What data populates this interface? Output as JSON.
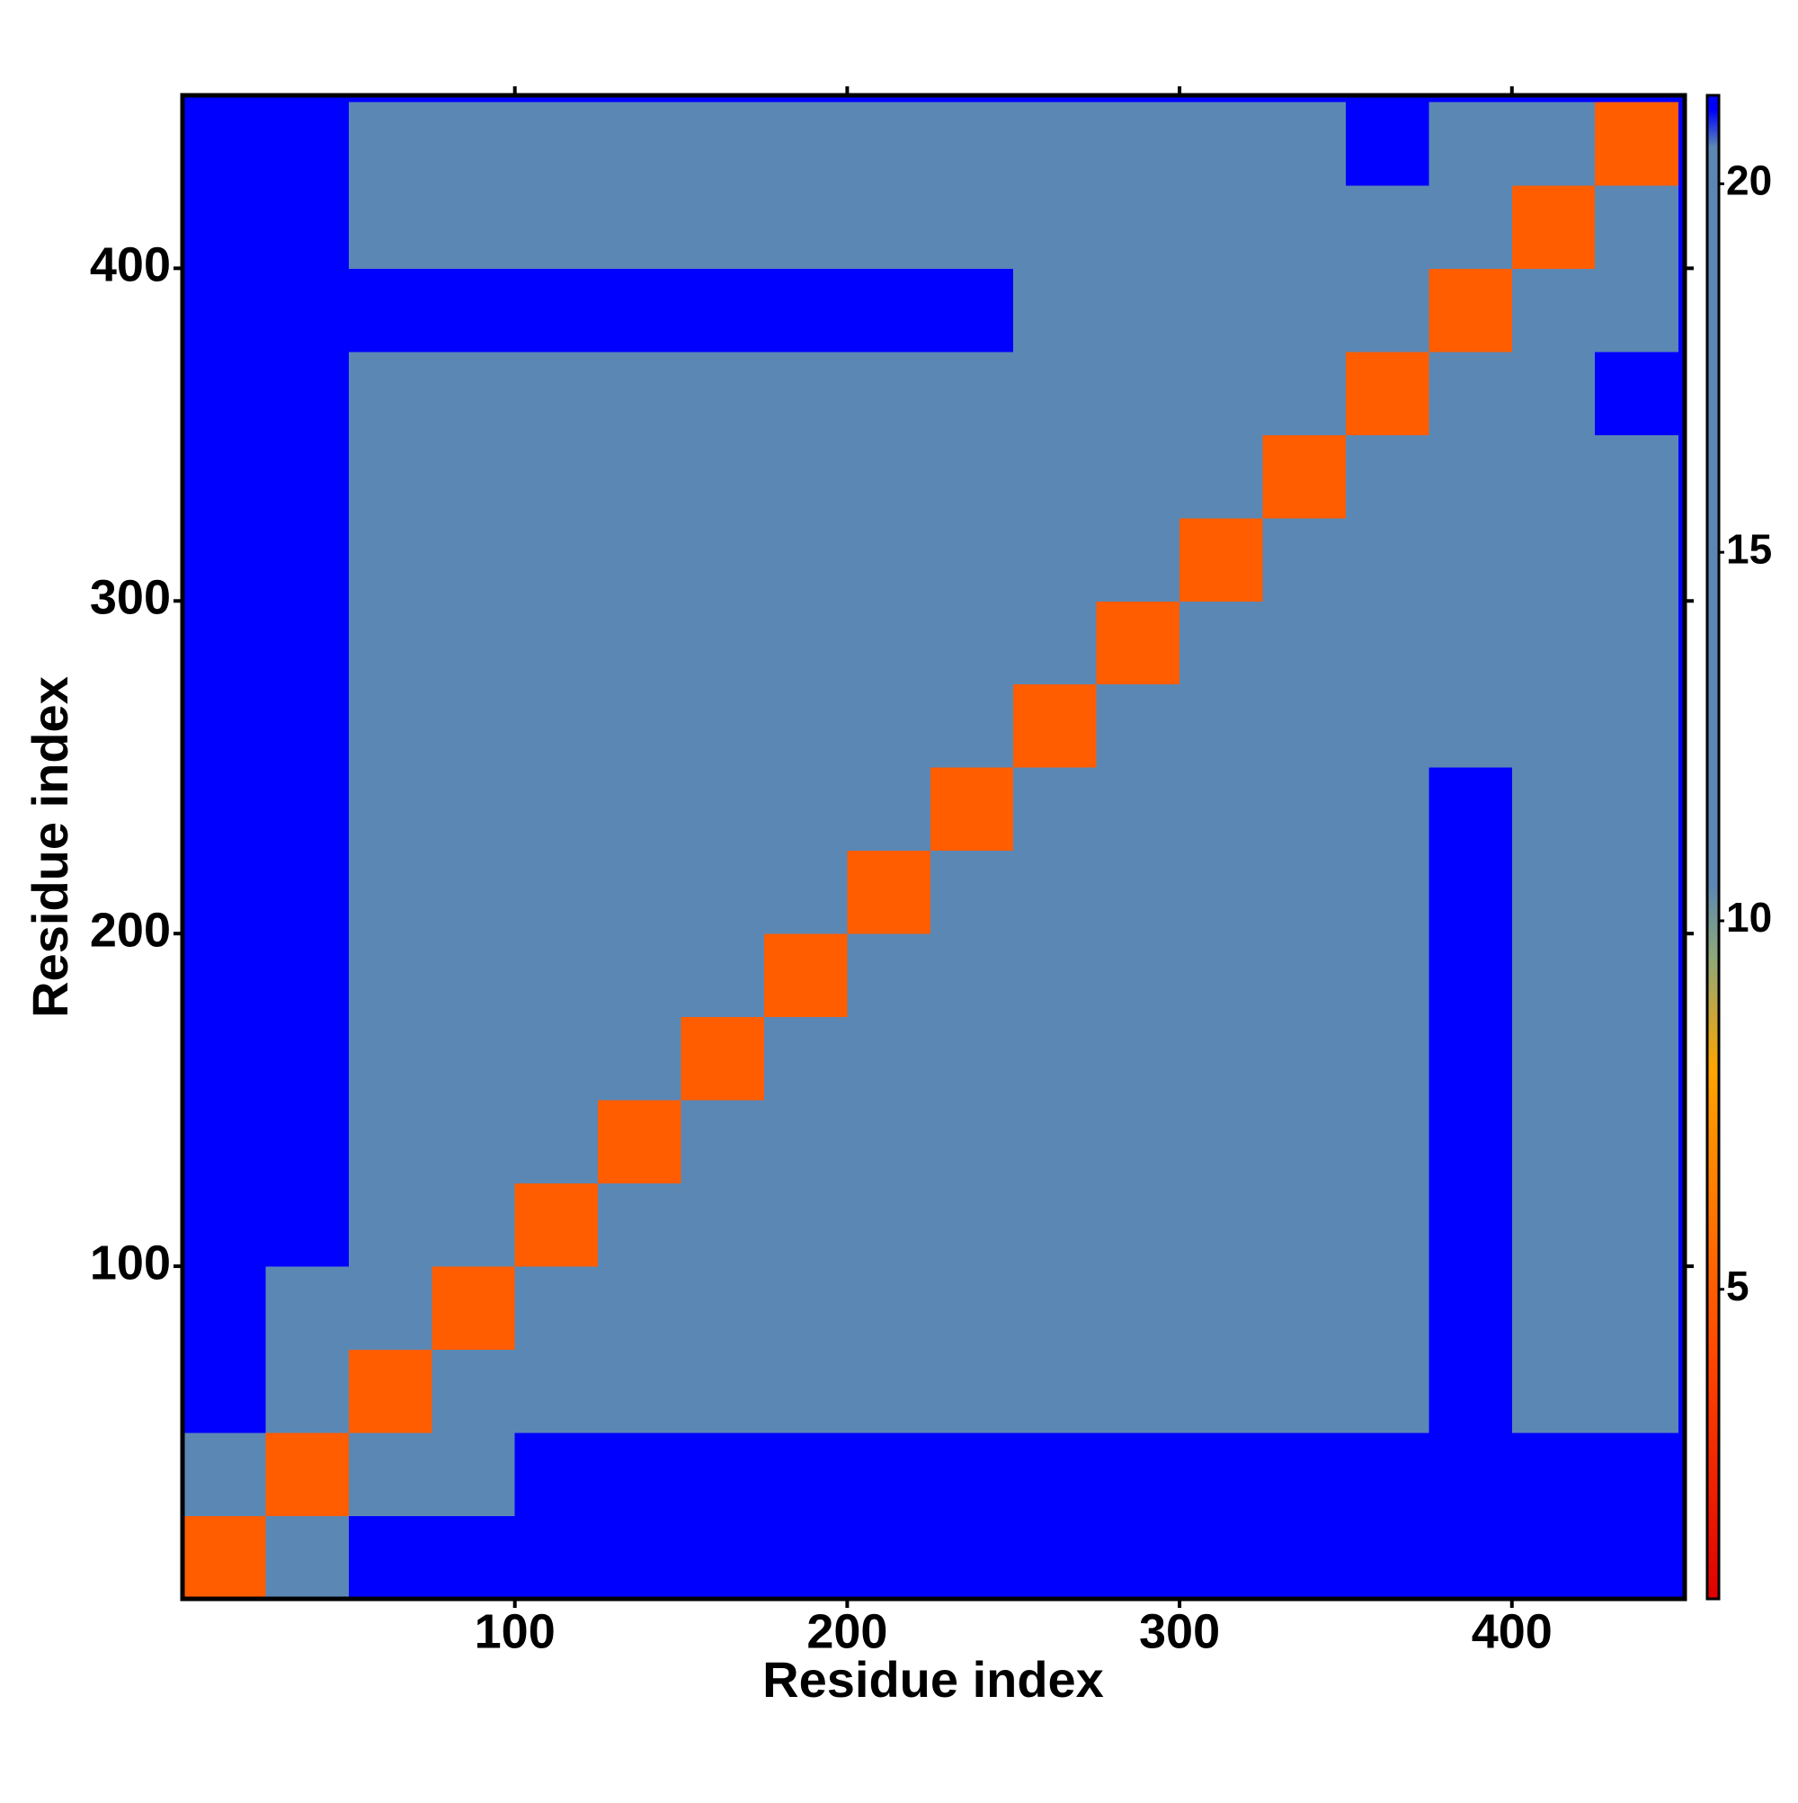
{
  "chart_data": {
    "type": "heatmap",
    "x_label": "Residue index",
    "y_label": "Residue index",
    "xlim": [
      0,
      452
    ],
    "ylim": [
      0,
      452
    ],
    "xticks": [
      100,
      200,
      300,
      400
    ],
    "yticks": [
      100,
      200,
      300,
      400
    ],
    "x": [
      12.5,
      37.5,
      62.5,
      87.5,
      112.5,
      137.5,
      162.5,
      187.5,
      212.5,
      237.5,
      262.5,
      287.5,
      312.5,
      337.5,
      362.5,
      387.5,
      412.5,
      437.5
    ],
    "y": [
      12.5,
      37.5,
      62.5,
      87.5,
      112.5,
      137.5,
      162.5,
      187.5,
      212.5,
      237.5,
      262.5,
      287.5,
      312.5,
      337.5,
      362.5,
      387.5,
      412.5,
      437.5
    ],
    "z": [
      [
        5,
        18,
        22,
        22,
        22,
        22,
        22,
        22,
        22,
        22,
        22,
        22,
        22,
        22,
        22,
        22,
        22,
        22
      ],
      [
        18,
        5,
        18,
        19,
        22,
        22,
        22,
        22,
        22,
        22,
        22,
        22,
        22,
        22,
        22,
        22,
        22,
        22
      ],
      [
        22,
        18,
        5,
        11,
        15,
        15,
        15,
        15,
        15,
        15,
        15,
        15,
        17,
        17,
        18,
        21,
        20,
        20
      ],
      [
        22,
        19,
        11,
        5,
        11,
        15,
        15,
        15,
        15,
        15,
        15,
        15,
        15,
        15,
        18,
        21,
        20,
        20
      ],
      [
        22,
        22,
        15,
        11,
        5,
        11,
        15,
        15,
        15,
        15,
        15,
        15,
        15,
        15,
        18,
        21,
        20,
        20
      ],
      [
        22,
        22,
        15,
        15,
        11,
        5,
        11,
        15,
        15,
        15,
        15,
        15,
        15,
        15,
        18,
        21,
        20,
        20
      ],
      [
        22,
        22,
        15,
        15,
        15,
        11,
        5,
        11,
        15,
        15,
        15,
        15,
        15,
        15,
        18,
        21,
        20,
        20
      ],
      [
        22,
        22,
        15,
        15,
        15,
        15,
        11,
        5,
        11,
        15,
        15,
        15,
        15,
        15,
        18,
        21,
        20,
        19
      ],
      [
        22,
        22,
        15,
        15,
        15,
        15,
        15,
        11,
        5,
        11,
        15,
        15,
        15,
        15,
        18,
        21,
        19,
        19
      ],
      [
        22,
        22,
        15,
        15,
        15,
        15,
        15,
        15,
        11,
        5,
        11,
        15,
        15,
        15,
        18,
        21,
        19,
        19
      ],
      [
        22,
        22,
        15,
        15,
        15,
        15,
        15,
        15,
        15,
        11,
        5,
        11,
        15,
        15,
        16,
        19,
        15,
        15
      ],
      [
        22,
        22,
        15,
        15,
        15,
        15,
        15,
        15,
        15,
        15,
        11,
        5,
        11,
        15,
        16,
        19,
        15,
        15
      ],
      [
        22,
        22,
        17,
        15,
        15,
        15,
        15,
        15,
        15,
        15,
        15,
        11,
        5,
        11,
        16,
        19,
        15,
        15
      ],
      [
        22,
        22,
        17,
        15,
        15,
        15,
        15,
        15,
        15,
        15,
        15,
        15,
        11,
        5,
        13,
        19,
        15,
        15
      ],
      [
        22,
        22,
        18,
        18,
        18,
        18,
        18,
        18,
        18,
        18,
        16,
        16,
        16,
        13,
        5,
        13,
        20,
        22
      ],
      [
        22,
        22,
        21,
        21,
        21,
        21,
        21,
        21,
        21,
        21,
        19,
        19,
        19,
        19,
        13,
        5,
        13,
        20
      ],
      [
        22,
        22,
        20,
        20,
        20,
        20,
        20,
        20,
        19,
        19,
        15,
        15,
        15,
        15,
        20,
        13,
        5,
        13
      ],
      [
        22,
        22,
        20,
        20,
        20,
        20,
        20,
        19,
        19,
        19,
        15,
        15,
        15,
        15,
        22,
        20,
        13,
        5
      ]
    ],
    "zlim": [
      0.8,
      21.2
    ],
    "zticks": [
      5,
      10,
      15,
      20
    ],
    "colorscale": [
      {
        "value": 0.8,
        "color": "#e00000"
      },
      {
        "value": 4,
        "color": "#ff4500"
      },
      {
        "value": 8,
        "color": "#ffa500"
      },
      {
        "value": 9.5,
        "color": "#8fa878"
      },
      {
        "value": 10.5,
        "color": "#5b87b5"
      },
      {
        "value": 20.5,
        "color": "#5b87b5"
      },
      {
        "value": 21,
        "color": "#0000ff"
      }
    ]
  }
}
